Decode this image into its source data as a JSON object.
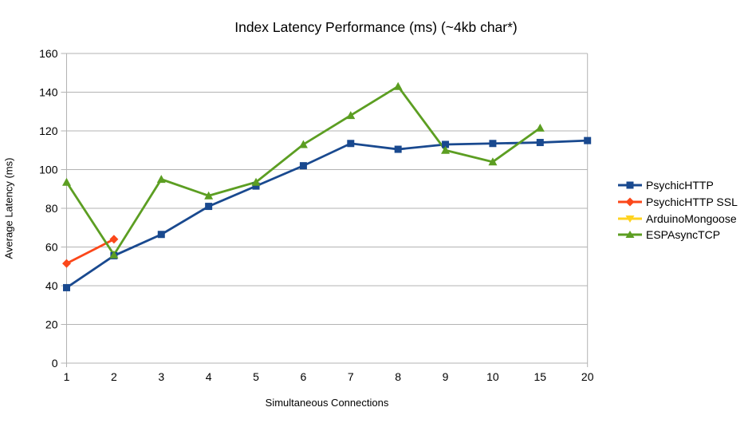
{
  "title": "Index Latency Performance (ms) (~4kb char*)",
  "chart_data": {
    "type": "line",
    "title": "Index Latency Performance (ms) (~4kb char*)",
    "xlabel": "Simultaneous Connections",
    "ylabel": "Average Latency (ms)",
    "categories": [
      "1",
      "2",
      "3",
      "4",
      "5",
      "6",
      "7",
      "8",
      "9",
      "10",
      "15",
      "20"
    ],
    "ylim": [
      0,
      160
    ],
    "ytick_step": 20,
    "grid": true,
    "legend_position": "right",
    "series": [
      {
        "name": "PsychicHTTP",
        "color": "#19498F",
        "marker": "square",
        "values": [
          39,
          55.5,
          66.5,
          81,
          91.5,
          102,
          113.5,
          110.5,
          113,
          113.5,
          114,
          115
        ]
      },
      {
        "name": "PsychicHTTP SSL",
        "color": "#FB471A",
        "marker": "diamond",
        "values": [
          51.5,
          64,
          null,
          null,
          null,
          null,
          null,
          null,
          null,
          null,
          null,
          null
        ]
      },
      {
        "name": "ArduinoMongoose",
        "color": "#FFD320",
        "marker": "triangle-down",
        "values": [
          null,
          null,
          null,
          null,
          null,
          null,
          null,
          null,
          null,
          null,
          null,
          null
        ]
      },
      {
        "name": "ESPAsyncTCP",
        "color": "#5C9E22",
        "marker": "triangle-up",
        "values": [
          93.5,
          56,
          95,
          86.5,
          93.5,
          113,
          128,
          143,
          110,
          104,
          121.5,
          null
        ]
      }
    ]
  },
  "colors": {
    "grid": "#B3B3B3",
    "axis": "#B3B3B3",
    "text": "#000000"
  }
}
